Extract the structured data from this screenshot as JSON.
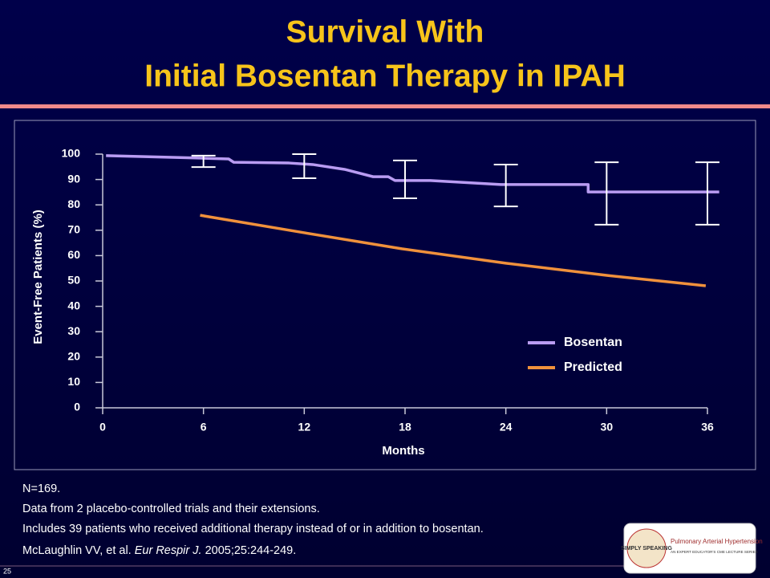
{
  "title_lines": [
    "Survival With",
    "Initial Bosentan Therapy in IPAH"
  ],
  "chart_data": {
    "type": "line",
    "x_label": "Months",
    "y_label": "Event-Free Patients (%)",
    "xlim": [
      0,
      36
    ],
    "xticks": [
      0,
      6,
      12,
      18,
      24,
      30,
      36
    ],
    "ylim": [
      0,
      100
    ],
    "yticks": [
      0,
      10,
      20,
      30,
      40,
      50,
      60,
      70,
      80,
      90,
      100
    ],
    "series": [
      {
        "name": "Bosentan",
        "color": "#b99cf2",
        "x": [
          0.2,
          6,
          7.5,
          7.8,
          11.1,
          12.5,
          14.4,
          16.1,
          17.0,
          17.4,
          19.5,
          23.7,
          28.9,
          28.9,
          36.7
        ],
        "values": [
          99.4,
          98.4,
          98.1,
          96.8,
          96.5,
          95.9,
          94,
          91.1,
          91.1,
          89.6,
          89.6,
          88,
          88,
          85.1,
          85.1
        ]
      },
      {
        "name": "Predicted",
        "color": "#f0913c",
        "x": [
          5.8,
          12,
          17.8,
          24,
          30,
          35.9
        ],
        "values": [
          75.9,
          69,
          62.7,
          57,
          52.2,
          48.1
        ]
      }
    ],
    "error_bars": {
      "x": [
        6,
        12,
        18,
        24,
        30,
        36
      ],
      "low": [
        94.9,
        90.5,
        82.6,
        79.4,
        72.2,
        72.2
      ],
      "high": [
        99.4,
        100,
        97.5,
        95.9,
        96.8,
        96.8
      ],
      "color": "#ffffff"
    }
  },
  "notes": [
    "N=169.",
    "Data from 2 placebo-controlled trials and their extensions.",
    "Includes 39 patients who received additional therapy instead of or in addition to bosentan."
  ],
  "citation": {
    "authors": "McLaughlin VV, et al.",
    "journal": "Eur Respir J.",
    "details": "2005;25:244-249."
  },
  "page_number": "25",
  "logo": {
    "brand": "SIMPLY SPEAKING",
    "topic": "Pulmonary Arterial Hypertension",
    "series": "AN EXPERT EDUCATOR'S CME LECTURE SERIES"
  }
}
